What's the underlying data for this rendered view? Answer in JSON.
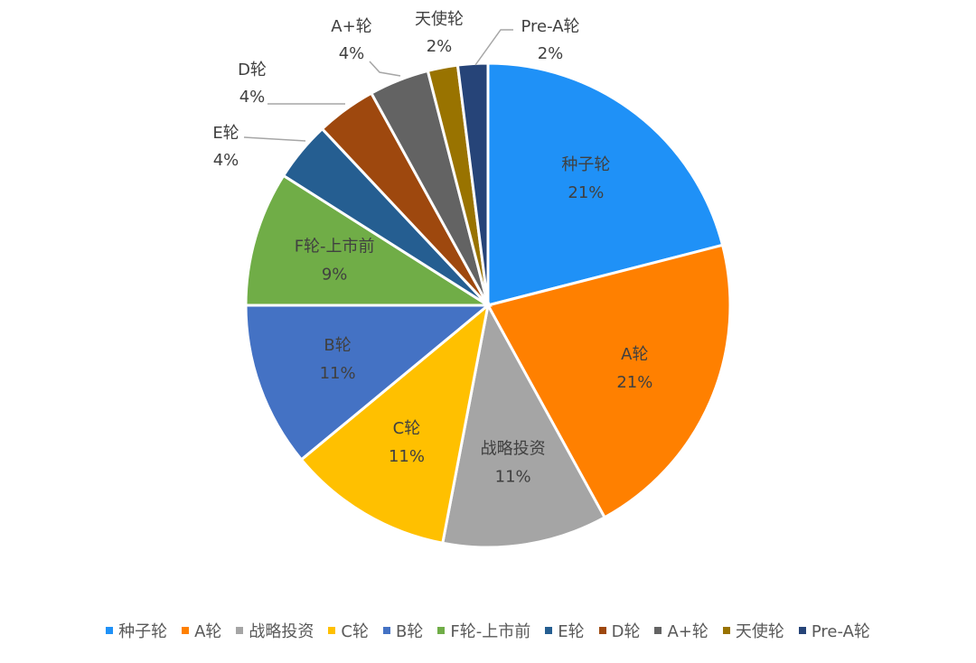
{
  "chart_data": {
    "type": "pie",
    "title": "",
    "legend_position": "bottom",
    "slices": [
      {
        "label": "种子轮",
        "value": 21,
        "display": "21%",
        "color": "#1F91F7"
      },
      {
        "label": "A轮",
        "value": 21,
        "display": "21%",
        "color": "#FF8000"
      },
      {
        "label": "战略投资",
        "value": 11,
        "display": "11%",
        "color": "#A5A5A5"
      },
      {
        "label": "C轮",
        "value": 11,
        "display": "11%",
        "color": "#FFC000"
      },
      {
        "label": "B轮",
        "value": 11,
        "display": "11%",
        "color": "#4472C4"
      },
      {
        "label": "F轮-上市前",
        "value": 9,
        "display": "9%",
        "color": "#70AD47"
      },
      {
        "label": "E轮",
        "value": 4,
        "display": "4%",
        "color": "#255E91"
      },
      {
        "label": "D轮",
        "value": 4,
        "display": "4%",
        "color": "#9E480E"
      },
      {
        "label": "A+轮",
        "value": 4,
        "display": "4%",
        "color": "#636363"
      },
      {
        "label": "天使轮",
        "value": 2,
        "display": "2%",
        "color": "#997300"
      },
      {
        "label": "Pre-A轮",
        "value": 2,
        "display": "2%",
        "color": "#264478"
      }
    ]
  }
}
